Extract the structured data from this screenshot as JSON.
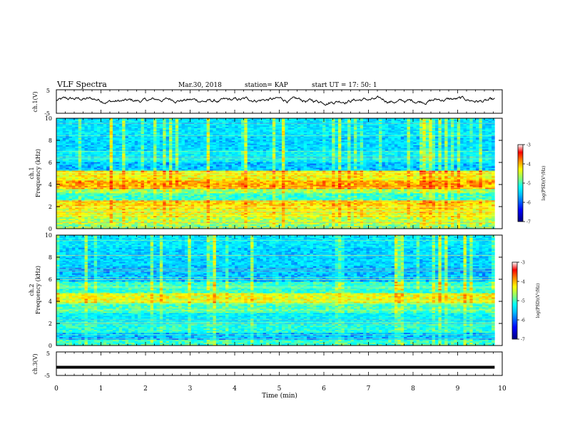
{
  "header": {
    "title": "VLF Spectra",
    "date": "Mar.30, 2018",
    "station": "station= KAP",
    "start": "start  UT =   17: 50: 1"
  },
  "panels": {
    "ch1_label": "ch.1(V)",
    "spec1_label_top": "ch.1",
    "spec1_label_bottom": "Frequency (kHz)",
    "spec2_label_top": "ch.2",
    "spec2_label_bottom": "Frequency (kHz)",
    "ch3_label": "ch.3(V)",
    "x_label": "Time  (min)",
    "colorbar_label": "log(PSD)(V²/Hz)"
  },
  "colors": {
    "colormap": [
      "#00007f",
      "#0000ff",
      "#00bfff",
      "#00ffff",
      "#7fff7f",
      "#ffff00",
      "#ff7f00",
      "#ff0000",
      "#ffffff"
    ],
    "trace": "#000000"
  },
  "chart_data": [
    {
      "type": "line",
      "name": "ch1-waveform",
      "ylabel": "ch.1(V)",
      "ylim": [
        -5,
        5
      ],
      "yticks": [
        -5,
        5
      ],
      "xlim": [
        0,
        10
      ],
      "description_values": "noisy trace hovering around -1 to 2 V over 0–9.8 min"
    },
    {
      "type": "heatmap",
      "name": "ch1-spectrogram",
      "xlabel": "",
      "ylabel": "Frequency (kHz)",
      "xlim": [
        0,
        10
      ],
      "ylim": [
        0,
        10
      ],
      "yticks": [
        0,
        2,
        4,
        6,
        8,
        10
      ],
      "data_x_extent": [
        0,
        9.83
      ],
      "bands_kHz_level": [
        [
          0,
          0.4,
          -5.0
        ],
        [
          0.4,
          1.0,
          -4.8
        ],
        [
          1.0,
          1.8,
          -4.6
        ],
        [
          1.8,
          2.6,
          -4.4
        ],
        [
          2.6,
          3.2,
          -5.3
        ],
        [
          3.2,
          3.6,
          -4.9
        ],
        [
          3.6,
          4.4,
          -4.2
        ],
        [
          4.4,
          5.2,
          -4.5
        ],
        [
          5.2,
          6.0,
          -5.9
        ],
        [
          6.0,
          7.0,
          -5.6
        ],
        [
          7.0,
          8.5,
          -5.8
        ],
        [
          8.5,
          10.0,
          -5.7
        ]
      ]
    },
    {
      "type": "heatmap",
      "name": "ch2-spectrogram",
      "ylabel": "Frequency (kHz)",
      "xlim": [
        0,
        10
      ],
      "ylim": [
        0,
        10
      ],
      "yticks": [
        0,
        2,
        4,
        6,
        8,
        10
      ],
      "data_x_extent": [
        0,
        9.83
      ],
      "bands_kHz_level": [
        [
          0,
          0.5,
          -5.3
        ],
        [
          0.5,
          1.2,
          -5.9
        ],
        [
          1.2,
          2.0,
          -5.4
        ],
        [
          2.0,
          3.0,
          -5.6
        ],
        [
          3.0,
          3.8,
          -5.2
        ],
        [
          3.8,
          4.8,
          -4.6
        ],
        [
          4.8,
          5.8,
          -5.3
        ],
        [
          5.8,
          7.2,
          -5.9
        ],
        [
          7.2,
          8.8,
          -5.8
        ],
        [
          8.8,
          10.0,
          -5.7
        ]
      ]
    },
    {
      "type": "line",
      "name": "ch3-waveform",
      "ylabel": "ch.3(V)",
      "ylim": [
        -5,
        5
      ],
      "yticks": [
        -5,
        5
      ],
      "xlim": [
        0,
        10
      ],
      "constant_value": -1.5,
      "xlabel": "Time  (min)",
      "xticks": [
        0,
        1,
        2,
        3,
        4,
        5,
        6,
        7,
        8,
        9,
        10
      ]
    },
    {
      "type": "colorbar",
      "name": "psd-colorbar",
      "label": "log(PSD)(V²/Hz)",
      "range": [
        -7,
        -3
      ],
      "ticks": [
        -3,
        -4,
        -5,
        -6,
        -7
      ]
    }
  ]
}
